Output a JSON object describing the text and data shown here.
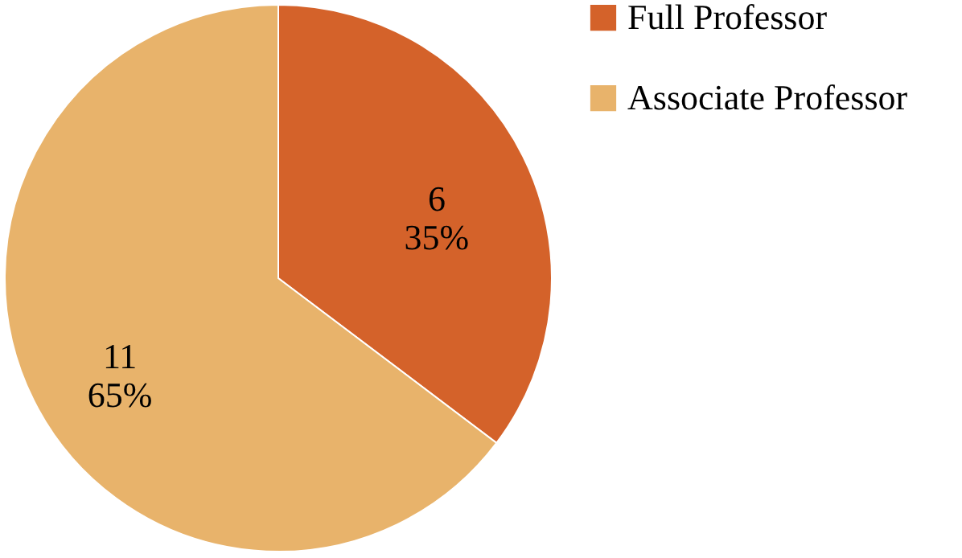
{
  "chart_data": {
    "type": "pie",
    "categories": [
      "Full Professor",
      "Associate Professor"
    ],
    "values": [
      6,
      11
    ],
    "colors": [
      "#d4622a",
      "#e8b36b"
    ],
    "value_labels": [
      "6\n35%",
      "11\n65%"
    ],
    "legend": "right"
  }
}
